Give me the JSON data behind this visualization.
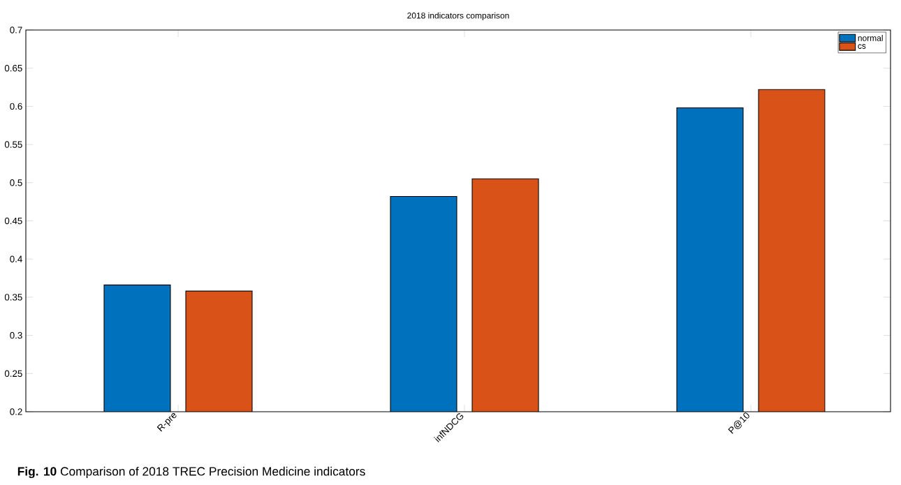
{
  "chart_data": {
    "type": "bar",
    "title": "2018 indicators comparison",
    "categories": [
      "R-pre",
      "infNDCG",
      "P@10"
    ],
    "series": [
      {
        "name": "normal",
        "color": "#0072bd",
        "values": [
          0.366,
          0.482,
          0.598
        ]
      },
      {
        "name": "cs",
        "color": "#d95319",
        "values": [
          0.358,
          0.505,
          0.622
        ]
      }
    ],
    "ylim": [
      0.2,
      0.7
    ],
    "yticks": [
      0.2,
      0.25,
      0.3,
      0.35,
      0.4,
      0.45,
      0.5,
      0.55,
      0.6,
      0.65,
      0.7
    ],
    "legend": "top right",
    "grid": false,
    "annotations": [
      "**Fig. 10** Comparison of 2018 TREC Precision Medicine indicators"
    ]
  }
}
